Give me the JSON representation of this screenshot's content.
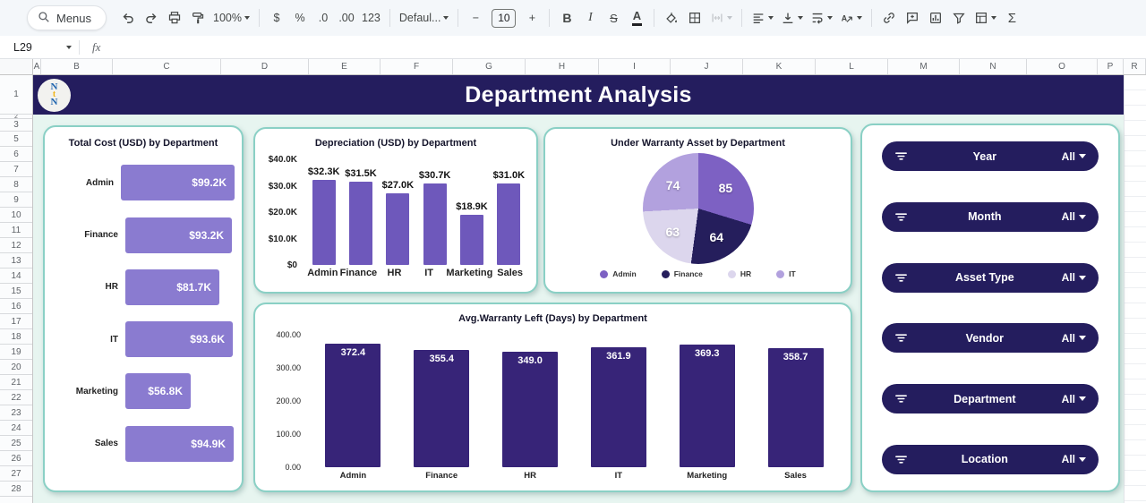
{
  "toolbar": {
    "menus_label": "Menus",
    "zoom_value": "100%",
    "currency": "$",
    "percent": "%",
    "decrease_decimal": ".0",
    "increase_decimal": ".00",
    "number_format": "123",
    "font_family": "Defaul...",
    "minus": "−",
    "font_size": "10",
    "plus": "+",
    "bold": "B",
    "italic": "I",
    "strikethrough": "S",
    "text_color": "A",
    "functions": "Σ"
  },
  "formula_bar": {
    "name_box": "L29",
    "fx_label": "fx"
  },
  "sheet": {
    "columns": [
      {
        "label": "A",
        "w": 9
      },
      {
        "label": "B",
        "w": 80
      },
      {
        "label": "C",
        "w": 121
      },
      {
        "label": "D",
        "w": 98
      },
      {
        "label": "E",
        "w": 80
      },
      {
        "label": "F",
        "w": 81
      },
      {
        "label": "G",
        "w": 81
      },
      {
        "label": "H",
        "w": 82
      },
      {
        "label": "I",
        "w": 80
      },
      {
        "label": "J",
        "w": 81
      },
      {
        "label": "K",
        "w": 81
      },
      {
        "label": "L",
        "w": 81
      },
      {
        "label": "M",
        "w": 80
      },
      {
        "label": "N",
        "w": 75
      },
      {
        "label": "O",
        "w": 79
      },
      {
        "label": "P",
        "w": 29
      },
      {
        "label": "R",
        "w": 25
      }
    ],
    "rows": [
      {
        "label": "1",
        "h": 44
      },
      {
        "label": "2",
        "h": 5
      },
      {
        "label": "3",
        "h": 14
      },
      {
        "label": "5",
        "h": 17
      },
      {
        "label": "6",
        "h": 17
      },
      {
        "label": "7",
        "h": 17
      },
      {
        "label": "8",
        "h": 17
      },
      {
        "label": "9",
        "h": 17
      },
      {
        "label": "10",
        "h": 17
      },
      {
        "label": "11",
        "h": 17
      },
      {
        "label": "12",
        "h": 17
      },
      {
        "label": "13",
        "h": 17
      },
      {
        "label": "14",
        "h": 17
      },
      {
        "label": "15",
        "h": 17
      },
      {
        "label": "16",
        "h": 17
      },
      {
        "label": "17",
        "h": 17
      },
      {
        "label": "18",
        "h": 17
      },
      {
        "label": "19",
        "h": 17
      },
      {
        "label": "20",
        "h": 17
      },
      {
        "label": "21",
        "h": 17
      },
      {
        "label": "22",
        "h": 17
      },
      {
        "label": "23",
        "h": 17
      },
      {
        "label": "24",
        "h": 17
      },
      {
        "label": "25",
        "h": 17
      },
      {
        "label": "26",
        "h": 17
      },
      {
        "label": "27",
        "h": 17
      },
      {
        "label": "28",
        "h": 17
      }
    ]
  },
  "banner": {
    "title": "Department Analysis",
    "logo_letters": [
      "N",
      "t",
      "N"
    ],
    "bg": "#241d5e"
  },
  "chart_data": [
    {
      "type": "bar",
      "orientation": "horizontal",
      "title": "Total Cost (USD) by Department",
      "categories": [
        "Admin",
        "Finance",
        "HR",
        "IT",
        "Marketing",
        "Sales"
      ],
      "values": [
        99200,
        93200,
        81700,
        93600,
        56800,
        94900
      ],
      "labels": [
        "$99.2K",
        "$93.2K",
        "$81.7K",
        "$93.6K",
        "$56.8K",
        "$94.9K"
      ],
      "xlim": [
        0,
        100000
      ],
      "bar_color": "#8a7bd0",
      "grid": false,
      "legend_position": "none"
    },
    {
      "type": "bar",
      "orientation": "vertical",
      "title": "Depreciation (USD) by Department",
      "categories": [
        "Admin",
        "Finance",
        "HR",
        "IT",
        "Marketing",
        "Sales"
      ],
      "values": [
        32300,
        31500,
        27000,
        30700,
        18900,
        31000
      ],
      "labels": [
        "$32.3K",
        "$31.5K",
        "$27.0K",
        "$30.7K",
        "$18.9K",
        "$31.0K"
      ],
      "ylim": [
        0,
        40000
      ],
      "yticks": [
        "$40.0K",
        "$30.0K",
        "$20.0K",
        "$10.0K",
        "$0"
      ],
      "bar_color": "#6e58bb",
      "grid": false,
      "legend_position": "none"
    },
    {
      "type": "pie",
      "title": "Under Warranty Asset by Department",
      "slices": [
        {
          "label": "Admin",
          "value": 85,
          "color": "#7d61c3"
        },
        {
          "label": "Finance",
          "value": 64,
          "color": "#251e5c"
        },
        {
          "label": "HR",
          "value": 63,
          "color": "#dcd6ed"
        },
        {
          "label": "IT",
          "value": 74,
          "color": "#b2a1de"
        }
      ],
      "legend_position": "bottom"
    },
    {
      "type": "bar",
      "orientation": "vertical",
      "title": "Avg.Warranty Left (Days) by Department",
      "categories": [
        "Admin",
        "Finance",
        "HR",
        "IT",
        "Marketing",
        "Sales"
      ],
      "values": [
        372.4,
        355.4,
        349.0,
        361.9,
        369.3,
        358.7
      ],
      "labels": [
        "372.4",
        "355.4",
        "349.0",
        "361.9",
        "369.3",
        "358.7"
      ],
      "ylim": [
        0,
        400
      ],
      "yticks": [
        "400.00",
        "300.00",
        "200.00",
        "100.00",
        "0.00"
      ],
      "bar_color": "#372478",
      "value_labels_inside": true,
      "grid": false,
      "legend_position": "none"
    }
  ],
  "filters": {
    "pill_color": "#241d5e",
    "items": [
      {
        "label": "Year",
        "value": "All"
      },
      {
        "label": "Month",
        "value": "All"
      },
      {
        "label": "Asset Type",
        "value": "All"
      },
      {
        "label": "Vendor",
        "value": "All"
      },
      {
        "label": "Department",
        "value": "All"
      },
      {
        "label": "Location",
        "value": "All"
      }
    ]
  }
}
